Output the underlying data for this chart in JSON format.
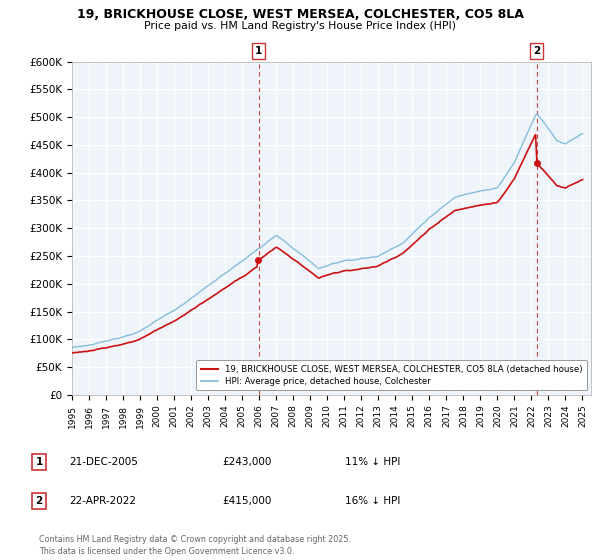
{
  "title_line1": "19, BRICKHOUSE CLOSE, WEST MERSEA, COLCHESTER, CO5 8LA",
  "title_line2": "Price paid vs. HM Land Registry's House Price Index (HPI)",
  "ylim": [
    0,
    600000
  ],
  "yticks": [
    0,
    50000,
    100000,
    150000,
    200000,
    250000,
    300000,
    350000,
    400000,
    450000,
    500000,
    550000,
    600000
  ],
  "x_start_year": 1995,
  "x_end_year": 2025,
  "purchase1_year": 2005.97,
  "purchase1_price": 243000,
  "purchase2_year": 2022.3,
  "purchase2_price": 415000,
  "hpi_color": "#7ab8d8",
  "price_color": "#cc1111",
  "dashed_color": "#cc5555",
  "grid_color": "#d8e8f0",
  "background_color": "#ffffff",
  "legend_label_price": "19, BRICKHOUSE CLOSE, WEST MERSEA, COLCHESTER, CO5 8LA (detached house)",
  "legend_label_hpi": "HPI: Average price, detached house, Colchester",
  "annotation1_date": "21-DEC-2005",
  "annotation1_price": "£243,000",
  "annotation1_hpi": "11% ↓ HPI",
  "annotation2_date": "22-APR-2022",
  "annotation2_price": "£415,000",
  "annotation2_hpi": "16% ↓ HPI",
  "footer": "Contains HM Land Registry data © Crown copyright and database right 2025.\nThis data is licensed under the Open Government Licence v3.0."
}
